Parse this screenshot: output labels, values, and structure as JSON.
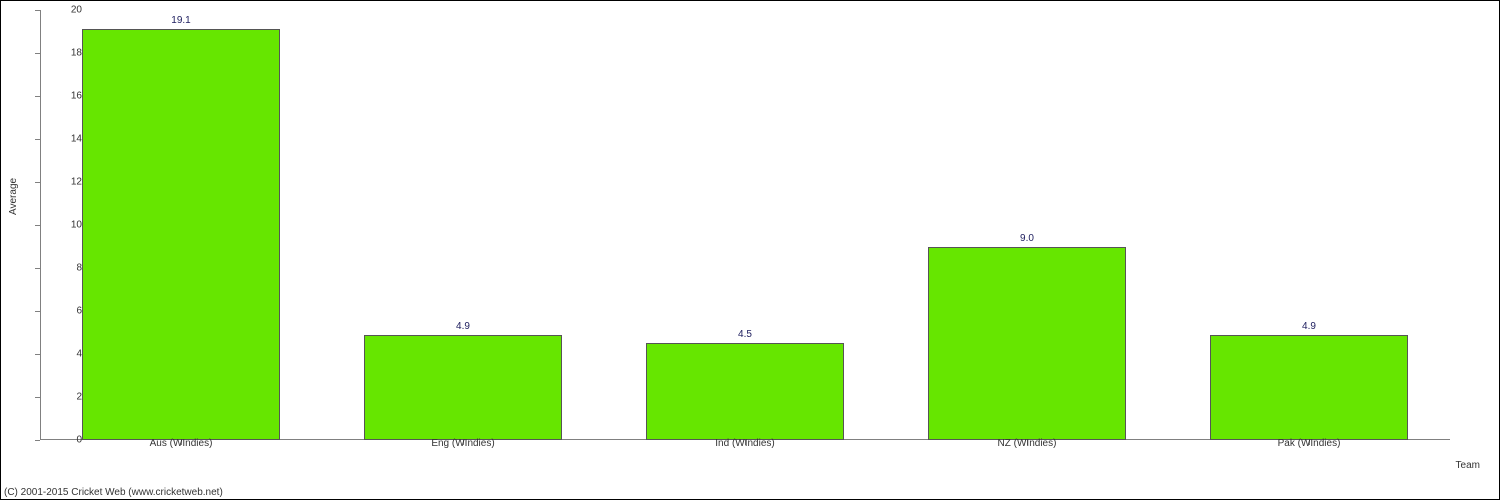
{
  "chart": {
    "type": "bar",
    "background_color": "#ffffff",
    "border_color": "#000000",
    "axis_color": "#808080",
    "bar_color": "#66e600",
    "bar_border_color": "#555555",
    "value_label_color": "#202060",
    "tick_label_color": "#333333",
    "tick_fontsize": 10,
    "value_fontsize": 10,
    "y_axis_title": "Average",
    "x_axis_title": "Team",
    "ylim": [
      0,
      20
    ],
    "ytick_step": 2,
    "categories": [
      "Aus (WIndies)",
      "Eng (WIndies)",
      "Ind (WIndies)",
      "NZ (WIndies)",
      "Pak (WIndies)"
    ],
    "values": [
      19.1,
      4.9,
      4.5,
      9.0,
      4.9
    ],
    "value_labels": [
      "19.1",
      "4.9",
      "4.5",
      "9.0",
      "4.9"
    ],
    "bar_width_ratio": 0.7
  },
  "copyright": "(C) 2001-2015 Cricket Web (www.cricketweb.net)"
}
